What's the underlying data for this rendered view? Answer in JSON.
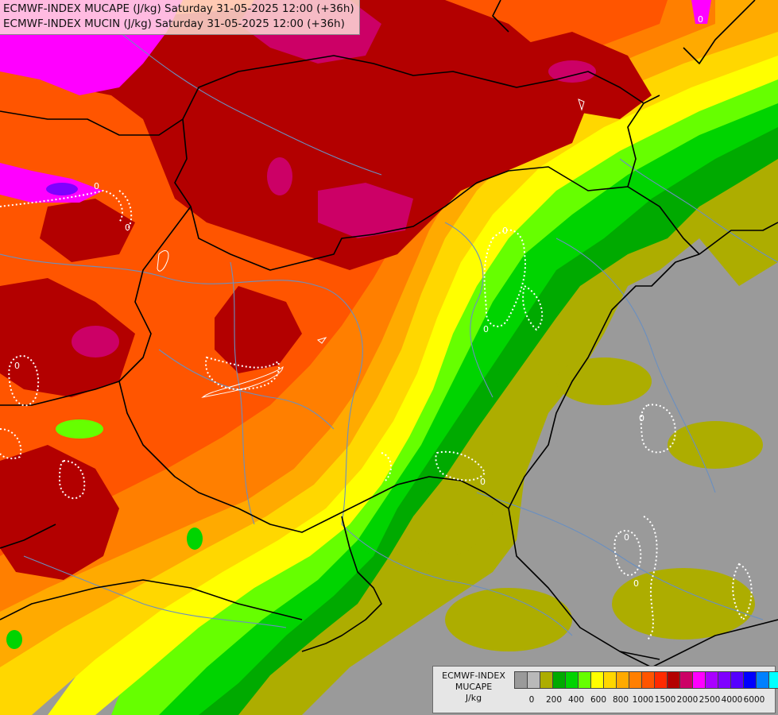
{
  "header": {
    "line1": "ECMWF-INDEX MUCAPE (J/kg) Saturday 31-05-2025 12:00 (+36h)",
    "line2": "ECMWF-INDEX MUCIN (J/kg) Saturday 31-05-2025 12:00 (+36h)"
  },
  "legend": {
    "title1": "ECMWF-INDEX",
    "title2": "MUCAPE",
    "units": "J/kg",
    "colors": [
      "#9a9a9a",
      "#b9b9b9",
      "#adad00",
      "#00aa00",
      "#00d400",
      "#66ff00",
      "#ffff00",
      "#ffd700",
      "#ffaa00",
      "#ff7f00",
      "#ff5500",
      "#ff2a00",
      "#b30000",
      "#cc0066",
      "#ff00ff",
      "#aa00ff",
      "#7f00ff",
      "#5500ff",
      "#0000ff",
      "#0080ff",
      "#00ffff",
      "#aaffff",
      "#ffffff"
    ],
    "labels": [
      "0",
      "200",
      "400",
      "600",
      "800",
      "1000",
      "1500",
      "2000",
      "2500",
      "4000",
      "6000"
    ]
  },
  "contours": {
    "cin_label": "0"
  },
  "palette": {
    "low_gray": "#9a9a9a",
    "olive": "#adad00",
    "green": "#00aa00",
    "bright_green": "#00d400",
    "lime": "#66ff00",
    "yellow": "#ffff00",
    "gold": "#ffd700",
    "orange": "#ffaa00",
    "dark_orange": "#ff7f00",
    "red_orange": "#ff5500",
    "dark_red": "#b30000",
    "magenta": "#cc0066",
    "pink": "#ff00ff",
    "border": "#000000",
    "river": "#6a8fc0"
  }
}
